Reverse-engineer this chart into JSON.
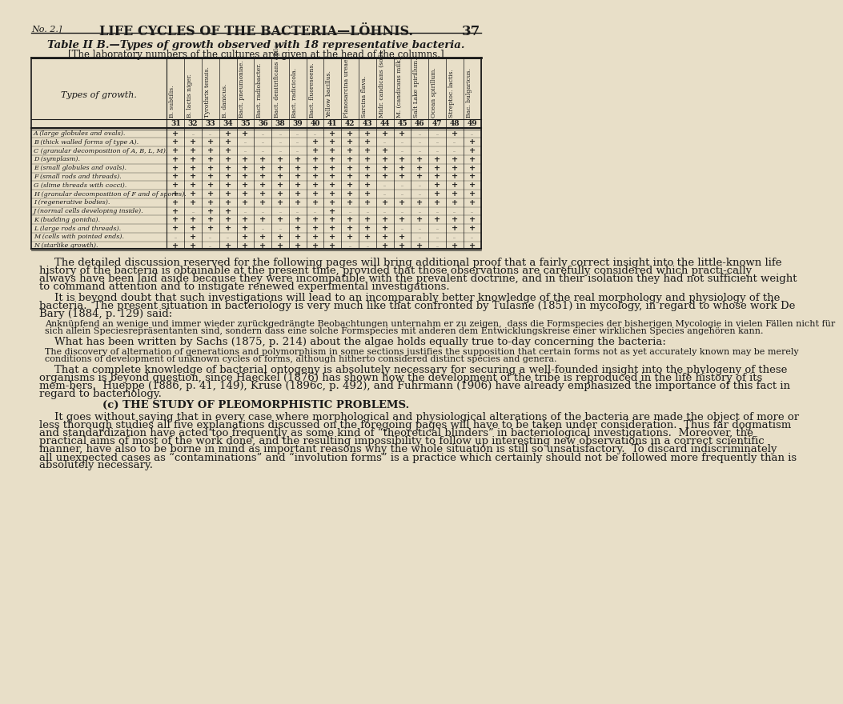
{
  "page_title": "LIFE CYCLES OF THE BACTERIA—LÖHNIS.",
  "page_no_left": "No. 2.]",
  "page_no_right": "37",
  "table_title": "Table II B.—Types of growth observed with 18 representative bacteria.",
  "table_subtitle": "[The laboratory numbers of the cultures are given at the head of the columns.]",
  "col_headers": [
    "B. subtilis.",
    "B. lactis niger.",
    "Tyrothrix tenuis.",
    "B. danicus.",
    "Bact. pneumoniae.",
    "Bact. radiobacter.",
    "Bact. denitrificans agile.",
    "Bact. radicicola.",
    "Bact. fluoreseens.",
    "Yellow bacillus.",
    "Planosarcina ureae.",
    "Sarcina flava.",
    "Midr. candicans (soil).",
    "M. (candicans milk).",
    "Salt Lake spirillum.",
    "Ocean spirillum.",
    "Streptoc. lactis.",
    "Bac. bulgaricus."
  ],
  "col_numbers": [
    "31",
    "32",
    "33",
    "34",
    "35",
    "36",
    "38",
    "39",
    "40",
    "41",
    "42",
    "43",
    "44",
    "45",
    "46",
    "47",
    "48",
    "49"
  ],
  "row_labels": [
    "A (large globules and ovals).",
    "B (thick walled forms of type A).",
    "C (granular decomposition of A, B, L, M).",
    "D (symplasm).",
    "E (small globules and ovals).",
    "F (small rods and threads).",
    "G (slime threads with cocci).",
    "H (granular decomposition of F and of spores).",
    "I (regenerative bodies).",
    "J (normal cells developing inside).",
    "K (budding gonidia).",
    "L (large rods and threads).",
    "M (cells with pointed ends).",
    "N (starlike growth)."
  ],
  "table_data": [
    [
      "+",
      ".",
      ".",
      "+",
      "+",
      ".",
      ".",
      ".",
      ".",
      "+",
      "+",
      "+",
      "+",
      "+",
      ".",
      ".",
      "+",
      "."
    ],
    [
      "+",
      "+",
      "+",
      "+",
      ".",
      ".",
      ".",
      ".",
      "+",
      "+",
      "+",
      "+",
      ".",
      ".",
      ".",
      ".",
      ".",
      "+"
    ],
    [
      "+",
      "+",
      "+",
      "+",
      ".",
      ".",
      ".",
      ".",
      "+",
      "+",
      "+",
      "+",
      "+",
      ".",
      ".",
      ".",
      ".",
      "+"
    ],
    [
      "+",
      "+",
      "+",
      "+",
      "+",
      "+",
      "+",
      "+",
      "+",
      "+",
      "+",
      "+",
      "+",
      "+",
      "+",
      "+",
      "+",
      "+"
    ],
    [
      "+",
      "+",
      "+",
      "+",
      "+",
      "+",
      "+",
      "+",
      "+",
      "+",
      "+",
      "+",
      "+",
      "+",
      "+",
      "+",
      "+",
      "+"
    ],
    [
      "+",
      "+",
      "+",
      "+",
      "+",
      "+",
      "+",
      "+",
      "+",
      "+",
      "+",
      "+",
      "+",
      "+",
      "+",
      "+",
      "+",
      "+"
    ],
    [
      "+",
      "+",
      "+",
      "+",
      "+",
      "+",
      "+",
      "+",
      "+",
      "+",
      "+",
      "+",
      ".",
      ".",
      ".",
      "+",
      "+",
      "+"
    ],
    [
      "+",
      "+",
      "+",
      "+",
      "+",
      "+",
      "+",
      "+",
      "+",
      "+",
      "+",
      "+",
      ".",
      ".",
      ".",
      "+",
      "+",
      "+"
    ],
    [
      "+",
      "+",
      "+",
      "+",
      "+",
      "+",
      "+",
      "+",
      "+",
      "+",
      "+",
      "+",
      "+",
      "+",
      "+",
      "+",
      "+",
      "+"
    ],
    [
      "+",
      ".",
      "+",
      "+",
      ".",
      ".",
      ".",
      ".",
      ".",
      "+",
      ".",
      ".",
      ".",
      ".",
      ".",
      ".",
      ".",
      "."
    ],
    [
      "+",
      "+",
      "+",
      "+",
      "+",
      "+",
      "+",
      "+",
      "+",
      "+",
      "+",
      "+",
      "+",
      "+",
      "+",
      "+",
      "+",
      "+"
    ],
    [
      "+",
      "+",
      "+",
      "+",
      "+",
      ".",
      ".",
      "+",
      "+",
      "+",
      "+",
      "+",
      "+",
      ".",
      ".",
      ".",
      "+",
      "+"
    ],
    [
      ".",
      "+",
      ".",
      ".",
      "+",
      "+",
      "+",
      "+",
      "+",
      "+",
      "+",
      "+",
      "+",
      "+",
      ".",
      ".",
      ".",
      "."
    ],
    [
      "+",
      "+",
      ".",
      "+",
      "+",
      "+",
      "+",
      "+",
      "+",
      "+",
      ".",
      ".",
      "+",
      "+",
      "+",
      ".",
      "+",
      "+"
    ]
  ],
  "body_paragraphs": [
    {
      "text": "The detailed discussion reserved for the following pages will bring additional proof that a fairly correct insight into the little-known life history of the bacteria is obtainable at the present time, provided that those observations are carefully considered which practi­cally always have been laid aside because they were incompatible with the prevalent doctrine, and in their isolation they had not sufficient weight to command attention and to instigate renewed experimental investigations.",
      "indent": true,
      "style": "normal",
      "size": 9.5
    },
    {
      "text": "It is beyond doubt that such investigations will lead to an incomparably better knowledge of the real morphology and physiology of the bacteria.  The present situation in bacteriology is very much like that confronted by Tulasne (1851) in mycology, in regard to whose work De Bary (1884, p. 129) said:",
      "indent": true,
      "style": "normal",
      "size": 9.5
    },
    {
      "text": "Anknüpfend an wenige und immer wieder zurückgedrängte Beobachtungen unternahm er zu zeigen,  dass die Formspecies der bisherigen Mycologie in vielen Fällen nicht für sich allein Speciesrepräsentanten sind, sondern dass eine solche Formspecies mit anderen dem Entwicklungskreise einer wirklichen Species angehören kann.",
      "indent": true,
      "style": "small",
      "size": 8.0
    },
    {
      "text": "What has been written by Sachs (1875, p. 214) about the algae holds equally true to-day concerning the bacteria:",
      "indent": true,
      "style": "normal",
      "size": 9.5
    },
    {
      "text": "The discovery of alternation of generations and polymorphism in some sections justifies the supposition that certain forms not as yet accurately known may be merely conditions of development of unknown cycles of forms, although hitherto considered distinct species and genera.",
      "indent": true,
      "style": "small",
      "size": 8.0
    },
    {
      "text": "That a complete knowledge of bacterial ontogeny is absolutely necessary for securing a well-founded insight into the phylogeny of these organisms is beyond question, since Haeckel (1876) has shown how the development of the tribe is reproduced in the life history of its mem­bers.  Hueppe (1886, p. 41, 149), Kruse (1896c, p. 492), and Fuhrmann (1906) have already emphasized the importance of this fact in regard to bacteriology.",
      "indent": true,
      "style": "normal",
      "size": 9.5
    },
    {
      "text": "(c) THE STUDY OF PLEOMORPHISTIC PROBLEMS.",
      "indent": false,
      "style": "center",
      "size": 9.5
    },
    {
      "text": "It goes without saying that in every case where morphological and physiological alterations of the bacteria are made the object of more or less thorough studies all five explanations discussed on the foregoing pages will have to be taken under consideration.  Thus far dogmatism and standardization have acted too frequently as some kind of “theoretical blinders” in bacteriological investigations.  Moreover, the practical aims of most of the work done, and the resulting impossibility to follow up interesting new observations in a correct scientific manner, have also to be borne in mind as important reasons why the whole situation is still so unsatisfactory.  To discard indiscriminately all unexpected cases as “contaminations” and “involution forms” is a practice which certainly should not be followed more frequently than is absolutely necessary.",
      "indent": true,
      "style": "normal",
      "size": 9.5
    }
  ],
  "bg_color": "#e8dfc8",
  "table_line_color": "#1a1a1a",
  "text_color": "#1a1a1a"
}
